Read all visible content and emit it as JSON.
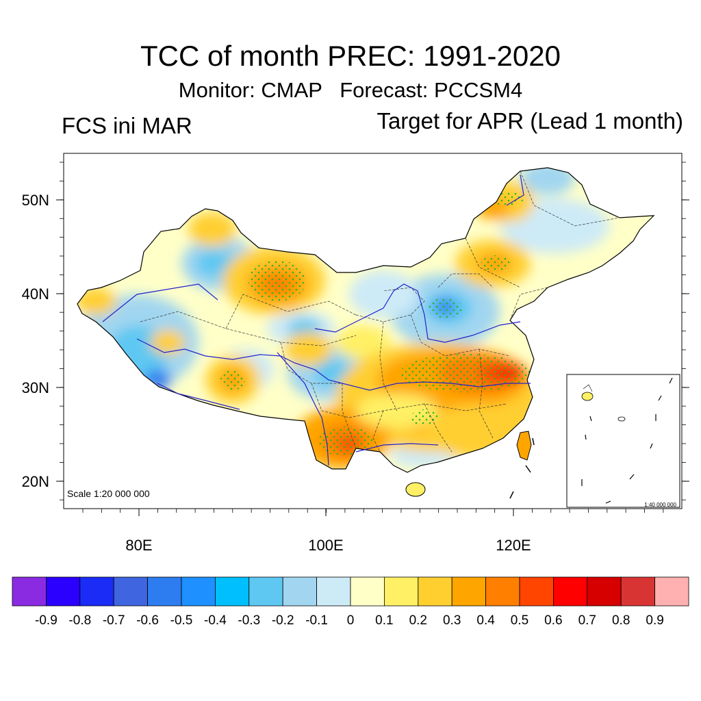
{
  "header": {
    "title": "TCC of month PREC: 1991-2020",
    "subtitle": "Monitor: CMAP   Forecast: PCCSM4",
    "left_label": "FCS ini MAR",
    "right_label": "Target for APR (Lead 1 month)"
  },
  "map": {
    "lat_ticks": [
      "50N",
      "40N",
      "30N",
      "20N"
    ],
    "lon_ticks": [
      "80E",
      "100E",
      "120E"
    ],
    "scale_main": "Scale 1:20 000 000",
    "scale_inset": "1:40 000 000"
  },
  "colorbar": {
    "labels": [
      "-0.9",
      "-0.8",
      "-0.7",
      "-0.6",
      "-0.5",
      "-0.4",
      "-0.3",
      "-0.2",
      "-0.1",
      "0",
      "0.1",
      "0.2",
      "0.3",
      "0.4",
      "0.5",
      "0.6",
      "0.7",
      "0.8",
      "0.9"
    ],
    "colors": [
      "#8a2be2",
      "#2b00ff",
      "#1a2cf5",
      "#3f65e0",
      "#2e7df0",
      "#1e90ff",
      "#00bfff",
      "#5ec8f2",
      "#a2d6f0",
      "#cdeaf7",
      "#ffffc8",
      "#fff065",
      "#ffcf30",
      "#ffa500",
      "#ff7f00",
      "#ff4500",
      "#ff0000",
      "#d60000",
      "#d93434",
      "#ffb0b0"
    ]
  }
}
